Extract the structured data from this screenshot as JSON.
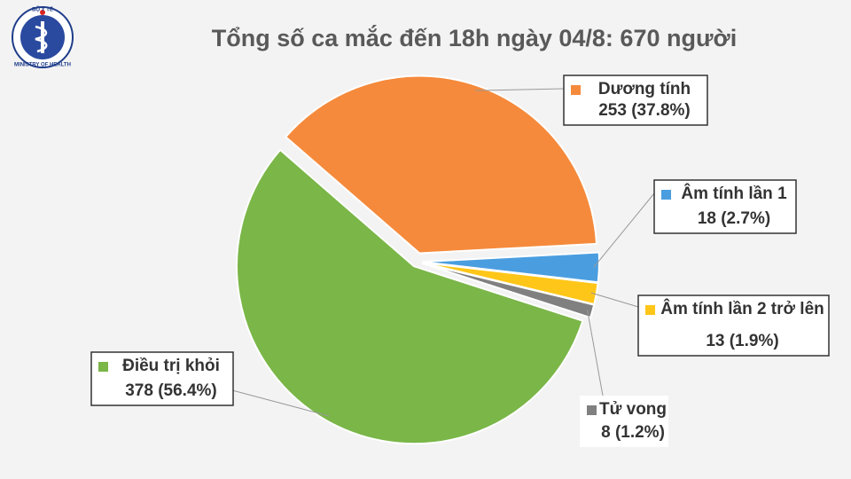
{
  "logo": {
    "top": "BỘ Y TẾ",
    "bottom": "MINISTRY OF HEALTH"
  },
  "chart_data": {
    "type": "pie",
    "title": "Tổng số ca mắc đến 18h ngày 04/8: 670 người",
    "categories": [
      "Dương tính",
      "Âm tính lần 1",
      "Âm tính lần 2 trở lên",
      "Tử vong",
      "Điều trị khỏi"
    ],
    "values": [
      253,
      18,
      13,
      8,
      378
    ],
    "value_labels": [
      "253 (37.8%)",
      "18 (2.7%)",
      "13 (1.9%)",
      "8 (1.2%)",
      "378 (56.4%)"
    ],
    "colors": [
      "#f58a3c",
      "#4a9ee0",
      "#ffc61a",
      "#808080",
      "#7ab648"
    ]
  }
}
